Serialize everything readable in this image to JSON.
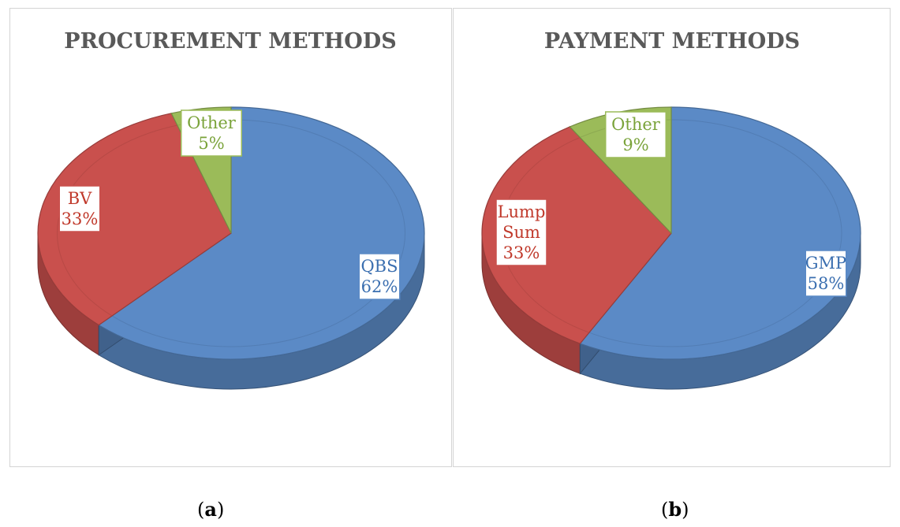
{
  "chart_data": [
    {
      "type": "pie",
      "style": "3d",
      "title": "PROCUREMENT METHODS",
      "slices": [
        {
          "label": "QBS",
          "value": 62,
          "value_label": "62%",
          "color": "#5b8ac6",
          "text_color": "#3b6fb0"
        },
        {
          "label": "BV",
          "value": 33,
          "value_label": "33%",
          "color": "#c9504d",
          "text_color": "#c0392b"
        },
        {
          "label": "Other",
          "value": 5,
          "value_label": "5%",
          "color": "#9bbb59",
          "text_color": "#7aa33a"
        }
      ]
    },
    {
      "type": "pie",
      "style": "3d",
      "title": "PAYMENT METHODS",
      "slices": [
        {
          "label": "GMP",
          "value": 58,
          "value_label": "58%",
          "color": "#5b8ac6",
          "text_color": "#3b6fb0"
        },
        {
          "label": "Lump Sum",
          "value": 33,
          "value_label": "33%",
          "color": "#c9504d",
          "text_color": "#c0392b"
        },
        {
          "label": "Other",
          "value": 9,
          "value_label": "9%",
          "color": "#9bbb59",
          "text_color": "#7aa33a"
        }
      ]
    }
  ],
  "captions": [
    {
      "open": "(",
      "letter": "a",
      "close": ")"
    },
    {
      "open": "(",
      "letter": "b",
      "close": ")"
    }
  ]
}
